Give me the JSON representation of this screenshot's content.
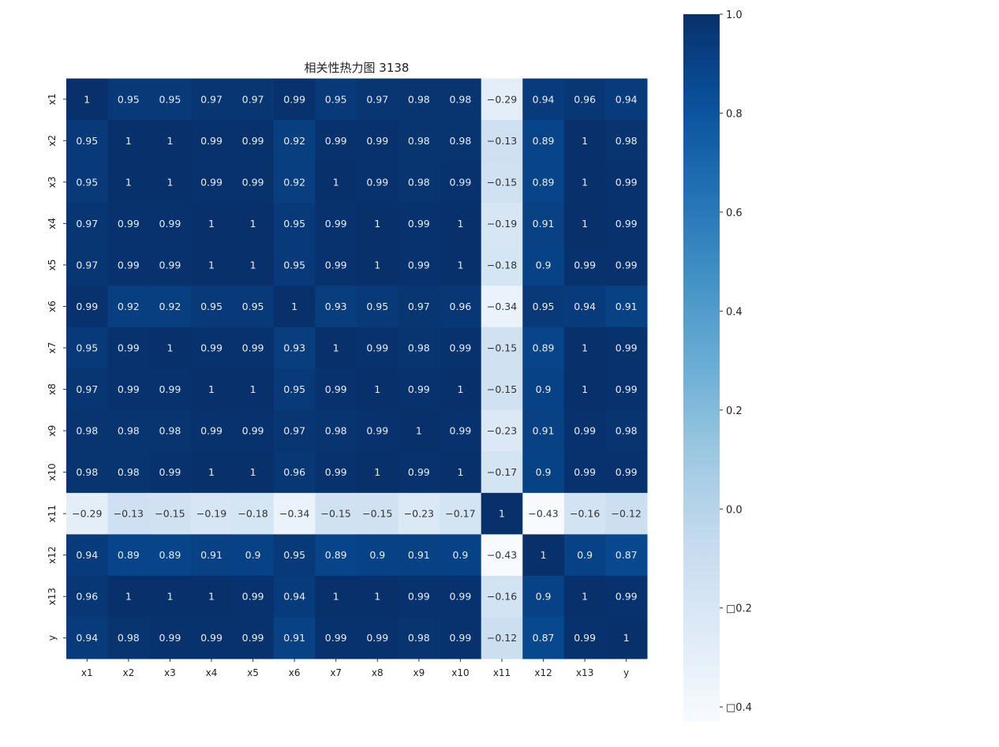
{
  "chart_data": {
    "type": "heatmap",
    "title": "相关性热力图  3138",
    "xlabels": [
      "x1",
      "x2",
      "x3",
      "x4",
      "x5",
      "x6",
      "x7",
      "x8",
      "x9",
      "x10",
      "x11",
      "x12",
      "x13",
      "y"
    ],
    "ylabels": [
      "x1",
      "x2",
      "x3",
      "x4",
      "x5",
      "x6",
      "x7",
      "x8",
      "x9",
      "x10",
      "x11",
      "x12",
      "x13",
      "y"
    ],
    "values": [
      [
        1,
        0.95,
        0.95,
        0.97,
        0.97,
        0.99,
        0.95,
        0.97,
        0.98,
        0.98,
        -0.29,
        0.94,
        0.96,
        0.94
      ],
      [
        0.95,
        1,
        1,
        0.99,
        0.99,
        0.92,
        0.99,
        0.99,
        0.98,
        0.98,
        -0.13,
        0.89,
        1,
        0.98
      ],
      [
        0.95,
        1,
        1,
        0.99,
        0.99,
        0.92,
        1,
        0.99,
        0.98,
        0.99,
        -0.15,
        0.89,
        1,
        0.99
      ],
      [
        0.97,
        0.99,
        0.99,
        1,
        1,
        0.95,
        0.99,
        1,
        0.99,
        1,
        -0.19,
        0.91,
        1,
        0.99
      ],
      [
        0.97,
        0.99,
        0.99,
        1,
        1,
        0.95,
        0.99,
        1,
        0.99,
        1,
        -0.18,
        0.9,
        0.99,
        0.99
      ],
      [
        0.99,
        0.92,
        0.92,
        0.95,
        0.95,
        1,
        0.93,
        0.95,
        0.97,
        0.96,
        -0.34,
        0.95,
        0.94,
        0.91
      ],
      [
        0.95,
        0.99,
        1,
        0.99,
        0.99,
        0.93,
        1,
        0.99,
        0.98,
        0.99,
        -0.15,
        0.89,
        1,
        0.99
      ],
      [
        0.97,
        0.99,
        0.99,
        1,
        1,
        0.95,
        0.99,
        1,
        0.99,
        1,
        -0.15,
        0.9,
        1,
        0.99
      ],
      [
        0.98,
        0.98,
        0.98,
        0.99,
        0.99,
        0.97,
        0.98,
        0.99,
        1,
        0.99,
        -0.23,
        0.91,
        0.99,
        0.98
      ],
      [
        0.98,
        0.98,
        0.99,
        1,
        1,
        0.96,
        0.99,
        1,
        0.99,
        1,
        -0.17,
        0.9,
        0.99,
        0.99
      ],
      [
        -0.29,
        -0.13,
        -0.15,
        -0.19,
        -0.18,
        -0.34,
        -0.15,
        -0.15,
        -0.23,
        -0.17,
        1,
        -0.43,
        -0.16,
        -0.12
      ],
      [
        0.94,
        0.89,
        0.89,
        0.91,
        0.9,
        0.95,
        0.89,
        0.9,
        0.91,
        0.9,
        -0.43,
        1,
        0.9,
        0.87
      ],
      [
        0.96,
        1,
        1,
        1,
        0.99,
        0.94,
        1,
        1,
        0.99,
        0.99,
        -0.16,
        0.9,
        1,
        0.99
      ],
      [
        0.94,
        0.98,
        0.99,
        0.99,
        0.99,
        0.91,
        0.99,
        0.99,
        0.98,
        0.99,
        -0.12,
        0.87,
        0.99,
        1
      ]
    ],
    "colormap": "Blues",
    "vmin": -0.43,
    "vmax": 1.0,
    "annotated": true,
    "colorbar": {
      "position": "right",
      "ticks": [
        1.0,
        0.8,
        0.6,
        0.4,
        0.2,
        0.0,
        -0.2,
        -0.4
      ],
      "tick_labels": [
        "1.0",
        "0.8",
        "0.6",
        "0.4",
        "0.2",
        "0.0",
        "□0.2",
        "□0.4"
      ]
    }
  }
}
